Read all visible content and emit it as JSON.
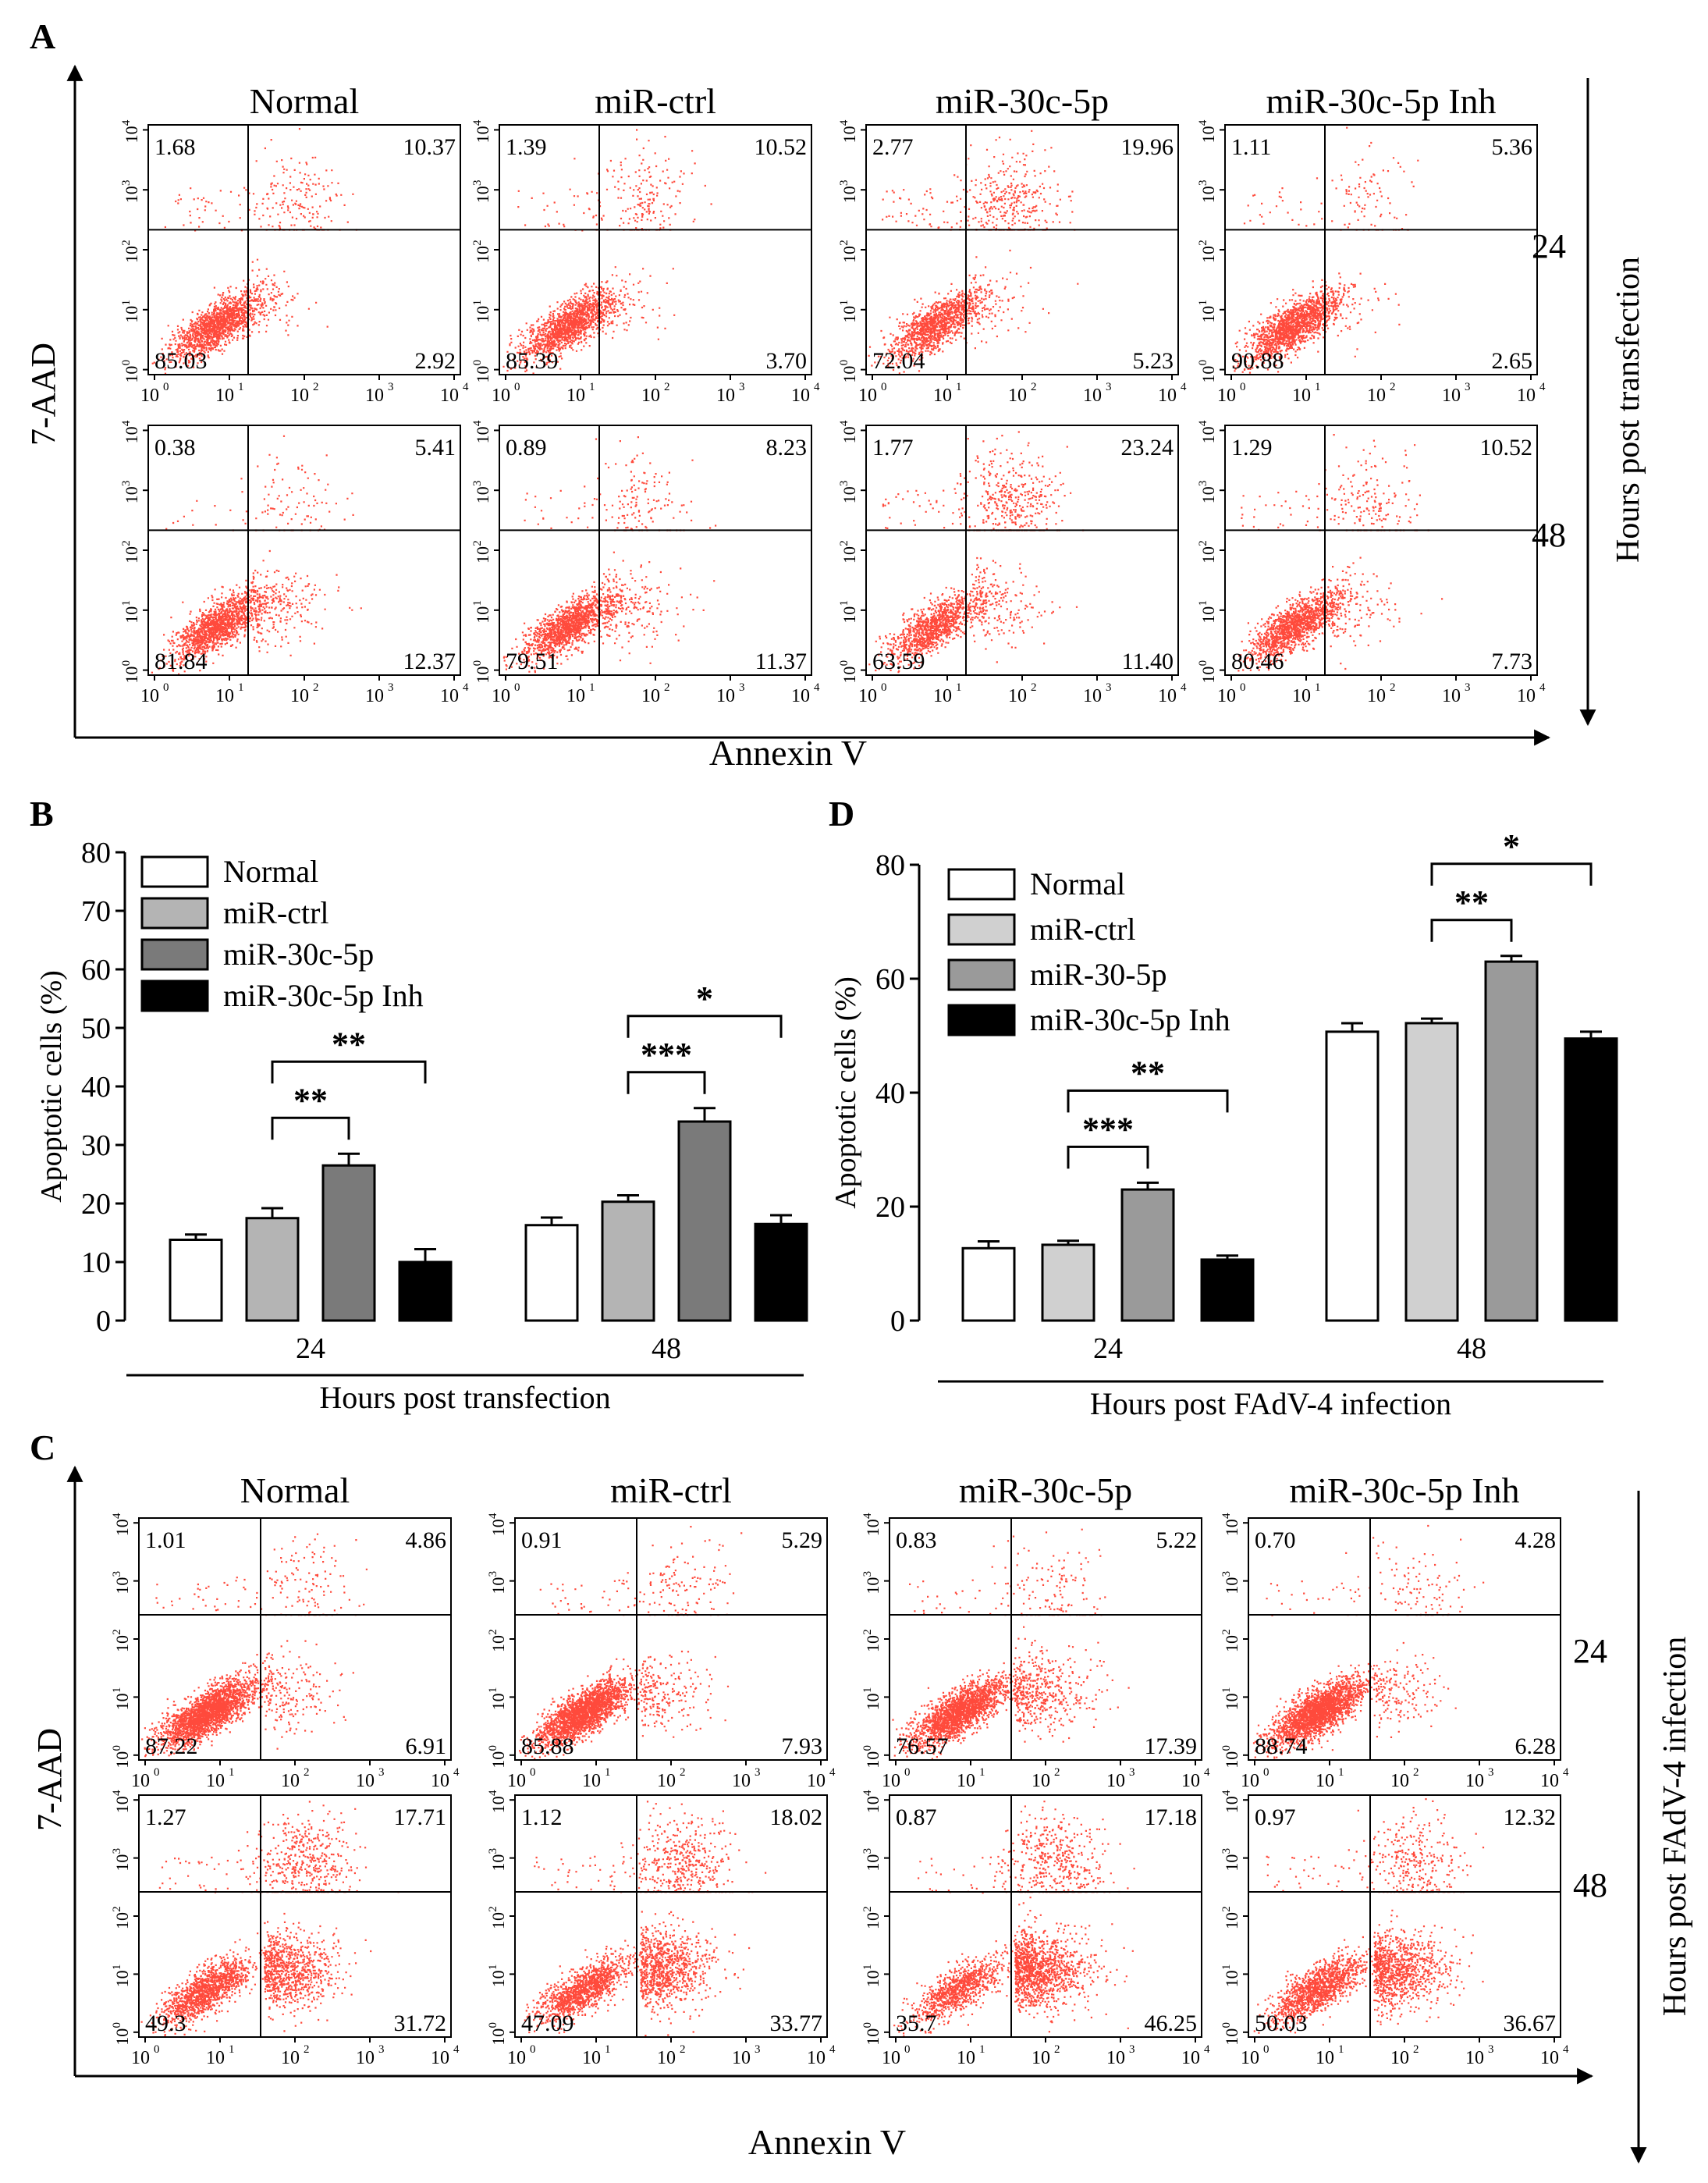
{
  "panels": {
    "A": {
      "letter": "A",
      "columns": [
        "Normal",
        "miR-ctrl",
        "miR-30c-5p",
        "miR-30c-5p Inh"
      ],
      "rows": [
        "24",
        "48"
      ],
      "y_axis": "7-AAD",
      "x_axis": "Annexin V",
      "right_label": "Hours post transfection",
      "quadrants": [
        [
          [
            "1.68",
            "10.37",
            "85.03",
            "2.92"
          ],
          [
            "1.39",
            "10.52",
            "85.39",
            "3.70"
          ],
          [
            "2.77",
            "19.96",
            "72.04",
            "5.23"
          ],
          [
            "1.11",
            "5.36",
            "90.88",
            "2.65"
          ]
        ],
        [
          [
            "0.38",
            "5.41",
            "81.84",
            "12.37"
          ],
          [
            "0.89",
            "8.23",
            "79.51",
            "11.37"
          ],
          [
            "1.77",
            "23.24",
            "63.59",
            "11.40"
          ],
          [
            "1.29",
            "10.52",
            "80.46",
            "7.73"
          ]
        ]
      ]
    },
    "C": {
      "letter": "C",
      "columns": [
        "Normal",
        "miR-ctrl",
        "miR-30c-5p",
        "miR-30c-5p Inh"
      ],
      "rows": [
        "24",
        "48"
      ],
      "y_axis": "7-AAD",
      "x_axis": "Annexin V",
      "right_label": "Hours post FAdV-4 infection",
      "quadrants": [
        [
          [
            "1.01",
            "4.86",
            "87.22",
            "6.91"
          ],
          [
            "0.91",
            "5.29",
            "85.88",
            "7.93"
          ],
          [
            "0.83",
            "5.22",
            "76.57",
            "17.39"
          ],
          [
            "0.70",
            "4.28",
            "88.74",
            "6.28"
          ]
        ],
        [
          [
            "1.27",
            "17.71",
            "49.3",
            "31.72"
          ],
          [
            "1.12",
            "18.02",
            "47.09",
            "33.77"
          ],
          [
            "0.87",
            "17.18",
            "35.7",
            "46.25"
          ],
          [
            "0.97",
            "12.32",
            "50.03",
            "36.67"
          ]
        ]
      ]
    },
    "B": {
      "letter": "B"
    },
    "D": {
      "letter": "D"
    }
  },
  "flow_ticks": {
    "x": [
      "10",
      "10",
      "10",
      "10",
      "10"
    ],
    "exp": [
      "0",
      "1",
      "2",
      "3",
      "4"
    ]
  },
  "chart_data": [
    {
      "panel": "B",
      "type": "bar",
      "categories": [
        "24",
        "48"
      ],
      "xlabel": "Hours post transfection",
      "ylabel": "Apoptotic cells  (%)",
      "ylim": [
        0,
        80
      ],
      "yticks": [
        "0",
        "10",
        "20",
        "30",
        "40",
        "50",
        "60",
        "70",
        "80"
      ],
      "legend_position": "top-left",
      "series": [
        {
          "name": "Normal",
          "color": "#ffffff",
          "values": [
            13.8,
            16.3
          ],
          "errors": [
            0.9,
            1.3
          ]
        },
        {
          "name": "miR-ctrl",
          "color": "#b4b4b4",
          "values": [
            17.5,
            20.3
          ],
          "errors": [
            1.7,
            1.1
          ]
        },
        {
          "name": "miR-30c-5p",
          "color": "#7a7a7a",
          "values": [
            26.5,
            34.0
          ],
          "errors": [
            2.0,
            2.3
          ]
        },
        {
          "name": "miR-30c-5p Inh",
          "color": "#000000",
          "values": [
            10.0,
            16.5
          ],
          "errors": [
            2.2,
            1.5
          ]
        }
      ],
      "significance": [
        {
          "group": 0,
          "from": 1,
          "to": 2,
          "label": "**"
        },
        {
          "group": 0,
          "from": 1,
          "to": 3,
          "label": "**"
        },
        {
          "group": 1,
          "from": 1,
          "to": 2,
          "label": "***"
        },
        {
          "group": 1,
          "from": 1,
          "to": 3,
          "label": "*"
        }
      ]
    },
    {
      "panel": "D",
      "type": "bar",
      "categories": [
        "24",
        "48"
      ],
      "xlabel": "Hours post FAdV-4 infection",
      "ylabel": "Apoptotic cells  (%)",
      "ylim": [
        0,
        80
      ],
      "yticks": [
        "0",
        "20",
        "40",
        "60",
        "80"
      ],
      "legend_position": "top-left",
      "series": [
        {
          "name": "Normal",
          "color": "#ffffff",
          "values": [
            12.7,
            50.7
          ],
          "errors": [
            1.2,
            1.5
          ]
        },
        {
          "name": "miR-ctrl",
          "color": "#d0d0d0",
          "values": [
            13.3,
            52.2
          ],
          "errors": [
            0.7,
            0.8
          ]
        },
        {
          "name": "miR-30-5p",
          "color": "#9a9a9a",
          "values": [
            23.0,
            63.0
          ],
          "errors": [
            1.2,
            1.0
          ]
        },
        {
          "name": "miR-30c-5p Inh",
          "color": "#000000",
          "values": [
            10.7,
            49.5
          ],
          "errors": [
            0.7,
            1.2
          ]
        }
      ],
      "significance": [
        {
          "group": 0,
          "from": 1,
          "to": 2,
          "label": "***"
        },
        {
          "group": 0,
          "from": 1,
          "to": 3,
          "label": "**"
        },
        {
          "group": 1,
          "from": 1,
          "to": 2,
          "label": "**"
        },
        {
          "group": 1,
          "from": 1,
          "to": 3,
          "label": "*"
        }
      ]
    }
  ]
}
